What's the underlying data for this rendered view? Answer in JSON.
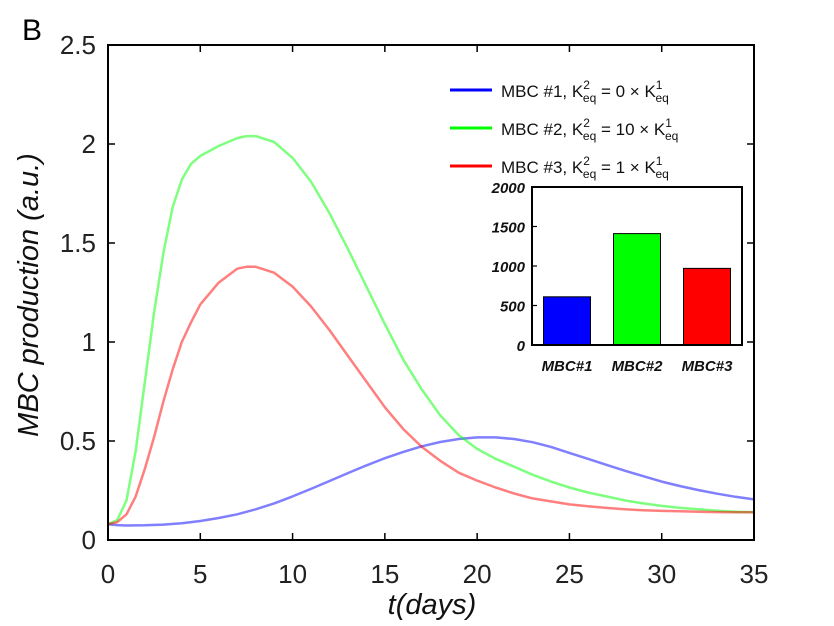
{
  "chart_data": {
    "panel_label": "B",
    "main": {
      "type": "line",
      "xlabel": "t(days)",
      "ylabel": "MBC production (a.u.)",
      "xlim": [
        0,
        35
      ],
      "ylim": [
        0,
        2.5
      ],
      "xticks": [
        0,
        5,
        10,
        15,
        20,
        25,
        30,
        35
      ],
      "yticks": [
        0,
        0.5,
        1,
        1.5,
        2,
        2.5
      ],
      "ytick_labels": [
        "0",
        "0.5",
        "1",
        "1.5",
        "2",
        "2.5"
      ],
      "grid": false,
      "legend_position": "top-right",
      "series": [
        {
          "name": "MBC #1",
          "legend": {
            "prefix": "MBC #1, K",
            "sup1": "2",
            "sub1": "eq",
            "mid": " = 0 × K",
            "sup2": "1",
            "sub2": "eq"
          },
          "color": "#0000ff",
          "points": [
            [
              0,
              0.08
            ],
            [
              0.5,
              0.075
            ],
            [
              1,
              0.073
            ],
            [
              2,
              0.074
            ],
            [
              3,
              0.078
            ],
            [
              4,
              0.085
            ],
            [
              5,
              0.096
            ],
            [
              6,
              0.111
            ],
            [
              7,
              0.13
            ],
            [
              8,
              0.155
            ],
            [
              9,
              0.185
            ],
            [
              10,
              0.22
            ],
            [
              11,
              0.258
            ],
            [
              12,
              0.298
            ],
            [
              13,
              0.338
            ],
            [
              14,
              0.377
            ],
            [
              15,
              0.413
            ],
            [
              16,
              0.445
            ],
            [
              17,
              0.473
            ],
            [
              18,
              0.495
            ],
            [
              19,
              0.51
            ],
            [
              20,
              0.518
            ],
            [
              21,
              0.518
            ],
            [
              22,
              0.51
            ],
            [
              23,
              0.494
            ],
            [
              24,
              0.47
            ],
            [
              25,
              0.44
            ],
            [
              26,
              0.41
            ],
            [
              27,
              0.38
            ],
            [
              28,
              0.35
            ],
            [
              29,
              0.322
            ],
            [
              30,
              0.295
            ],
            [
              31,
              0.272
            ],
            [
              32,
              0.252
            ],
            [
              33,
              0.234
            ],
            [
              34,
              0.218
            ],
            [
              35,
              0.205
            ]
          ]
        },
        {
          "name": "MBC #2",
          "legend": {
            "prefix": "MBC #2, K",
            "sup1": "2",
            "sub1": "eq",
            "mid": " = 10 × K",
            "sup2": "1",
            "sub2": "eq"
          },
          "color": "#00ff00",
          "points": [
            [
              0,
              0.08
            ],
            [
              0.5,
              0.1
            ],
            [
              1,
              0.2
            ],
            [
              1.5,
              0.45
            ],
            [
              2,
              0.8
            ],
            [
              2.5,
              1.15
            ],
            [
              3,
              1.45
            ],
            [
              3.5,
              1.68
            ],
            [
              4,
              1.82
            ],
            [
              4.5,
              1.9
            ],
            [
              5,
              1.94
            ],
            [
              6,
              1.99
            ],
            [
              7,
              2.03
            ],
            [
              7.5,
              2.04
            ],
            [
              8,
              2.04
            ],
            [
              9,
              2.01
            ],
            [
              10,
              1.93
            ],
            [
              11,
              1.81
            ],
            [
              12,
              1.65
            ],
            [
              13,
              1.47
            ],
            [
              14,
              1.28
            ],
            [
              15,
              1.09
            ],
            [
              16,
              0.91
            ],
            [
              17,
              0.76
            ],
            [
              18,
              0.63
            ],
            [
              19,
              0.53
            ],
            [
              20,
              0.46
            ],
            [
              21,
              0.41
            ],
            [
              22,
              0.37
            ],
            [
              23,
              0.33
            ],
            [
              24,
              0.295
            ],
            [
              25,
              0.265
            ],
            [
              26,
              0.24
            ],
            [
              27,
              0.22
            ],
            [
              28,
              0.2
            ],
            [
              29,
              0.185
            ],
            [
              30,
              0.172
            ],
            [
              31,
              0.162
            ],
            [
              32,
              0.155
            ],
            [
              33,
              0.148
            ],
            [
              34,
              0.143
            ],
            [
              35,
              0.14
            ]
          ]
        },
        {
          "name": "MBC #3",
          "legend": {
            "prefix": "MBC #3, K",
            "sup1": "2",
            "sub1": "eq",
            "mid": " = 1 × K",
            "sup2": "1",
            "sub2": "eq"
          },
          "color": "#ff0000",
          "points": [
            [
              0,
              0.08
            ],
            [
              0.5,
              0.09
            ],
            [
              1,
              0.13
            ],
            [
              1.5,
              0.22
            ],
            [
              2,
              0.36
            ],
            [
              2.5,
              0.52
            ],
            [
              3,
              0.7
            ],
            [
              3.5,
              0.86
            ],
            [
              4,
              1.0
            ],
            [
              4.5,
              1.1
            ],
            [
              5,
              1.19
            ],
            [
              6,
              1.3
            ],
            [
              7,
              1.37
            ],
            [
              7.5,
              1.38
            ],
            [
              8,
              1.38
            ],
            [
              9,
              1.35
            ],
            [
              10,
              1.28
            ],
            [
              11,
              1.18
            ],
            [
              12,
              1.06
            ],
            [
              13,
              0.93
            ],
            [
              14,
              0.8
            ],
            [
              15,
              0.67
            ],
            [
              16,
              0.56
            ],
            [
              17,
              0.47
            ],
            [
              18,
              0.4
            ],
            [
              19,
              0.34
            ],
            [
              20,
              0.3
            ],
            [
              21,
              0.265
            ],
            [
              22,
              0.235
            ],
            [
              23,
              0.21
            ],
            [
              24,
              0.195
            ],
            [
              25,
              0.18
            ],
            [
              26,
              0.17
            ],
            [
              27,
              0.162
            ],
            [
              28,
              0.155
            ],
            [
              29,
              0.15
            ],
            [
              30,
              0.147
            ],
            [
              31,
              0.145
            ],
            [
              32,
              0.143
            ],
            [
              33,
              0.141
            ],
            [
              34,
              0.14
            ],
            [
              35,
              0.14
            ]
          ]
        }
      ]
    },
    "inset": {
      "type": "bar",
      "categories": [
        "MBC#1",
        "MBC#2",
        "MBC#3"
      ],
      "values": [
        610,
        1410,
        970
      ],
      "colors": [
        "#0000ff",
        "#00ff00",
        "#ff0000"
      ],
      "ylim": [
        0,
        2000
      ],
      "yticks": [
        0,
        500,
        1000,
        1500,
        2000
      ],
      "ytick_labels": [
        "0",
        "500",
        "1000",
        "1500",
        "2000"
      ]
    }
  }
}
